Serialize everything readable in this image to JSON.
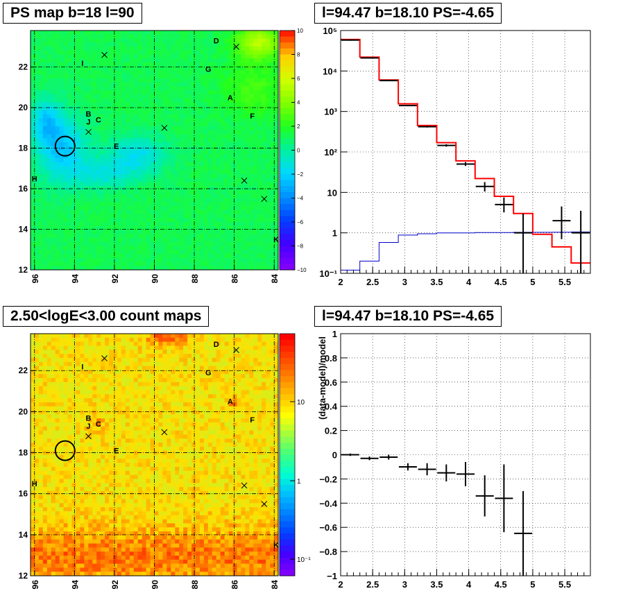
{
  "colors": {
    "ps_background": "#33e04a",
    "ps_cyan_region": "#2fd8c8",
    "ps_blue_core": "#1f7fe0",
    "ps_yellow_region": "#c8e832",
    "count_background": "#c8e040",
    "count_hot": "#ff6a00",
    "count_peak": "#e02000",
    "data_points": "#000000",
    "model_total": "#ff0000",
    "model_background": "#0000cc",
    "source_marker": "#000000"
  },
  "chart_data": [
    {
      "type": "heatmap",
      "title": "PS map b=18 l=90",
      "x_ticks": [
        "96",
        "94",
        "92",
        "90",
        "88",
        "86",
        "84"
      ],
      "y_ticks": [
        "12",
        "14",
        "16",
        "18",
        "20",
        "22"
      ],
      "xlim": [
        96.2,
        83.8
      ],
      "ylim": [
        12,
        23.8
      ],
      "colorbar": {
        "min": -10,
        "max": 10,
        "ticks": [
          "10",
          "8",
          "6",
          "4",
          "2",
          "0",
          "−2",
          "−4",
          "−6",
          "−8",
          "−10"
        ]
      },
      "source_labels": [
        {
          "label": "D",
          "l": 86.9,
          "b": 23.3
        },
        {
          "label": "I",
          "l": 93.6,
          "b": 22.2
        },
        {
          "label": "G",
          "l": 87.3,
          "b": 21.9
        },
        {
          "label": "A",
          "l": 86.2,
          "b": 20.5
        },
        {
          "label": "B",
          "l": 93.3,
          "b": 19.7
        },
        {
          "label": "J",
          "l": 93.3,
          "b": 19.3
        },
        {
          "label": "C",
          "l": 92.8,
          "b": 19.4
        },
        {
          "label": "F",
          "l": 85.1,
          "b": 19.6
        },
        {
          "label": "E",
          "l": 91.9,
          "b": 18.1
        },
        {
          "label": "H",
          "l": 96.0,
          "b": 16.5
        },
        {
          "label": "K",
          "l": 83.9,
          "b": 13.5
        }
      ],
      "crosses": [
        {
          "l": 92.5,
          "b": 22.6
        },
        {
          "l": 85.9,
          "b": 23.0
        },
        {
          "l": 93.3,
          "b": 18.8
        },
        {
          "l": 89.5,
          "b": 19.0
        },
        {
          "l": 85.5,
          "b": 16.4
        },
        {
          "l": 84.5,
          "b": 15.5
        }
      ],
      "circle": {
        "l": 94.47,
        "b": 18.1
      }
    },
    {
      "type": "line",
      "title": "l=94.47 b=18.10 PS=-4.65",
      "y_scale": "log",
      "xlim": [
        2,
        5.9
      ],
      "ylim": [
        0.1,
        100000
      ],
      "grid": true,
      "x_ticks": [
        "2",
        "2.5",
        "3",
        "3.5",
        "4",
        "4.5",
        "5",
        "5.5"
      ],
      "y_ticks": [
        "10⁻¹",
        "1",
        "10",
        "10²",
        "10³",
        "10⁴",
        "10⁵"
      ],
      "series": [
        {
          "style": "steps",
          "color": "red",
          "edges": [
            2.0,
            2.3,
            2.6,
            2.9,
            3.2,
            3.5,
            3.8,
            4.1,
            4.4,
            4.7,
            5.0,
            5.3,
            5.6,
            5.9
          ],
          "values": [
            60000,
            22000,
            6000,
            1550,
            450,
            170,
            60,
            22,
            8,
            3.0,
            0.92,
            0.45,
            0.18
          ]
        },
        {
          "style": "steps",
          "color": "blue",
          "edges": [
            2.0,
            2.3,
            2.6,
            2.9,
            3.2,
            3.5,
            3.8,
            4.1,
            4.4,
            4.7,
            5.0,
            5.3,
            5.6,
            5.9
          ],
          "values": [
            0.12,
            0.2,
            0.58,
            0.88,
            0.95,
            1.0,
            1.0,
            1.02,
            1.02,
            1.03,
            1.03,
            1.04,
            1.05
          ]
        },
        {
          "style": "points",
          "color": "black",
          "x": [
            2.15,
            2.45,
            2.75,
            3.05,
            3.35,
            3.65,
            3.95,
            4.25,
            4.55,
            4.85,
            5.45,
            5.75
          ],
          "y": [
            58000,
            21000,
            5800,
            1400,
            420,
            145,
            50,
            14,
            5,
            1.0,
            2.0,
            1.0
          ],
          "ylow": [
            56000,
            20500,
            5650,
            1350,
            400,
            135,
            45,
            10.5,
            3.2,
            0.1,
            0.7,
            0.1
          ],
          "yhigh": [
            60000,
            21500,
            5950,
            1450,
            440,
            155,
            56,
            18,
            7.5,
            3.0,
            4.5,
            3.5
          ]
        }
      ]
    },
    {
      "type": "heatmap",
      "title": "2.50<logE<3.00 count maps",
      "x_ticks": [
        "96",
        "94",
        "92",
        "90",
        "88",
        "86",
        "84"
      ],
      "y_ticks": [
        "12",
        "14",
        "16",
        "18",
        "20",
        "22"
      ],
      "xlim": [
        96.2,
        83.8
      ],
      "ylim": [
        12,
        23.8
      ],
      "colorbar": {
        "scale": "log",
        "ticks": [
          "10",
          "1",
          "10⁻¹"
        ]
      },
      "source_labels": [
        {
          "label": "D",
          "l": 86.9,
          "b": 23.3
        },
        {
          "label": "I",
          "l": 93.6,
          "b": 22.2
        },
        {
          "label": "G",
          "l": 87.3,
          "b": 21.9
        },
        {
          "label": "A",
          "l": 86.2,
          "b": 20.5
        },
        {
          "label": "B",
          "l": 93.3,
          "b": 19.7
        },
        {
          "label": "J",
          "l": 93.3,
          "b": 19.3
        },
        {
          "label": "C",
          "l": 92.8,
          "b": 19.4
        },
        {
          "label": "F",
          "l": 85.1,
          "b": 19.6
        },
        {
          "label": "E",
          "l": 91.9,
          "b": 18.1
        },
        {
          "label": "H",
          "l": 96.0,
          "b": 16.5
        },
        {
          "label": "K",
          "l": 83.9,
          "b": 13.5
        }
      ],
      "crosses": [
        {
          "l": 92.5,
          "b": 22.6
        },
        {
          "l": 85.9,
          "b": 23.0
        },
        {
          "l": 93.3,
          "b": 18.8
        },
        {
          "l": 89.5,
          "b": 19.0
        },
        {
          "l": 85.5,
          "b": 16.4
        },
        {
          "l": 84.5,
          "b": 15.5
        }
      ],
      "circle": {
        "l": 94.47,
        "b": 18.1
      }
    },
    {
      "type": "line",
      "title": "l=94.47 b=18.10 PS=-4.65",
      "ylabel": "(data-model)/model",
      "xlim": [
        2,
        5.9
      ],
      "ylim": [
        -1,
        1
      ],
      "grid": true,
      "x_ticks": [
        "2",
        "2.5",
        "3",
        "3.5",
        "4",
        "4.5",
        "5",
        "5.5"
      ],
      "y_ticks": [
        "−1",
        "−0.8",
        "−0.6",
        "−0.4",
        "−0.2",
        "0",
        "0.2",
        "0.4",
        "0.6",
        "0.8",
        "1"
      ],
      "series": [
        {
          "style": "points",
          "color": "black",
          "x": [
            2.15,
            2.45,
            2.75,
            3.05,
            3.35,
            3.65,
            3.95,
            4.25,
            4.55,
            4.85
          ],
          "y": [
            0.0,
            -0.03,
            -0.02,
            -0.1,
            -0.12,
            -0.15,
            -0.16,
            -0.34,
            -0.36,
            -0.65
          ],
          "yerr": [
            0.01,
            0.015,
            0.02,
            0.03,
            0.05,
            0.07,
            0.1,
            0.17,
            0.28,
            0.35
          ]
        }
      ]
    }
  ]
}
